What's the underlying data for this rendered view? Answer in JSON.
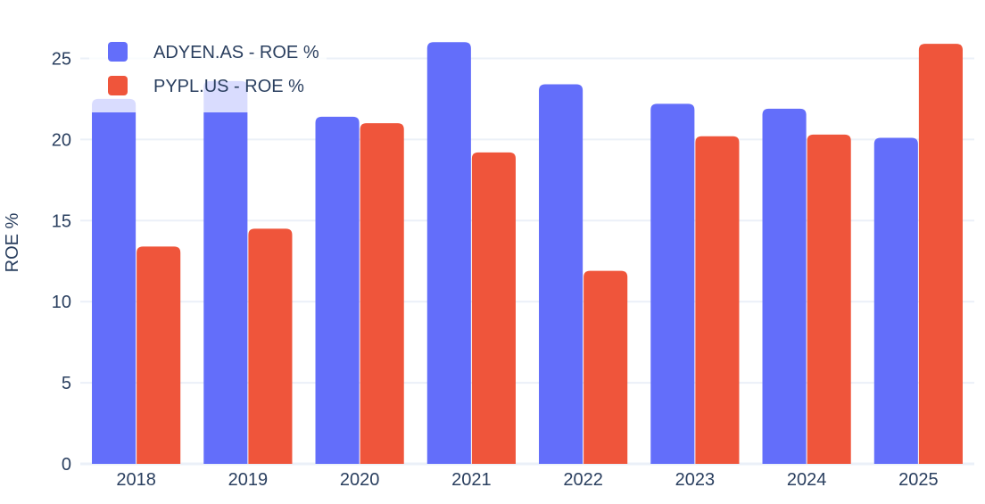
{
  "chart_data": {
    "type": "bar",
    "title": "",
    "xlabel": "",
    "ylabel": "ROE %",
    "categories": [
      "2018",
      "2019",
      "2020",
      "2021",
      "2022",
      "2023",
      "2024",
      "2025"
    ],
    "series": [
      {
        "name": "ADYEN.AS - ROE %",
        "color": "#636efa",
        "values": [
          22.5,
          23.6,
          21.4,
          26.0,
          23.4,
          22.2,
          21.9,
          20.1
        ]
      },
      {
        "name": "PYPL.US - ROE %",
        "color": "#ef553b",
        "values": [
          13.4,
          14.5,
          21.0,
          19.2,
          11.9,
          20.2,
          20.3,
          25.9
        ]
      }
    ],
    "ylim": [
      0,
      27.5
    ],
    "yticks": [
      0,
      5,
      10,
      15,
      20,
      25
    ],
    "grid": true,
    "legend_position": "top-left"
  }
}
